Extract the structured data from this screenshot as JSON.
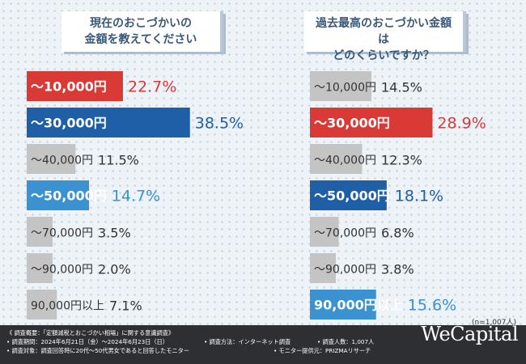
{
  "left_title": [
    "現在のおこづかいの",
    "金額を教えてください"
  ],
  "right_title": [
    "過去最高のおこづかい金額は",
    "どのくらいですか？"
  ],
  "chart_data": [
    {
      "type": "bar",
      "orientation": "horizontal",
      "title": "現在のおこづかいの金額を教えてください",
      "unit": "%",
      "categories": [
        "〜10,000円",
        "〜30,000円",
        "〜40,000円",
        "〜50,000円",
        "〜70,000円",
        "〜90,000円",
        "90,000円以上"
      ],
      "values": [
        22.7,
        38.5,
        11.5,
        14.7,
        3.5,
        2.0,
        7.1
      ],
      "value_labels": [
        "22.7%",
        "38.5%",
        "11.5%",
        "14.7%",
        "3.5%",
        "2.0%",
        "7.1%"
      ],
      "colors": [
        "#d93a36",
        "#1f5fa8",
        "#c4c4c4",
        "#3a92d1",
        "#c4c4c4",
        "#c4c4c4",
        "#c4c4c4"
      ],
      "label_colors": [
        "#d93a36",
        "#1f5fa8",
        "#333333",
        "#3a92d1",
        "#333333",
        "#333333",
        "#333333"
      ],
      "highlight": [
        true,
        true,
        false,
        true,
        false,
        false,
        false
      ],
      "xlim": [
        0,
        38.5
      ]
    },
    {
      "type": "bar",
      "orientation": "horizontal",
      "title": "過去最高のおこづかい金額はどのくらいですか？",
      "unit": "%",
      "categories": [
        "〜10,000円",
        "〜30,000円",
        "〜40,000円",
        "〜50,000円",
        "〜70,000円",
        "〜90,000円",
        "90,000円以上"
      ],
      "values": [
        14.5,
        28.9,
        12.3,
        18.1,
        6.8,
        3.8,
        15.6
      ],
      "value_labels": [
        "14.5%",
        "28.9%",
        "12.3%",
        "18.1%",
        "6.8%",
        "3.8%",
        "15.6%"
      ],
      "colors": [
        "#c4c4c4",
        "#d93a36",
        "#c4c4c4",
        "#1f5fa8",
        "#c4c4c4",
        "#c4c4c4",
        "#3a92d1"
      ],
      "label_colors": [
        "#333333",
        "#d93a36",
        "#333333",
        "#1f5fa8",
        "#333333",
        "#333333",
        "#3a92d1"
      ],
      "highlight": [
        false,
        true,
        false,
        true,
        false,
        false,
        true
      ],
      "xlim": [
        0,
        38.5
      ]
    }
  ],
  "n_note": "(n=1,007人)",
  "footer": {
    "overview": "《 調査概要：「定額減税とおこづかい相場」に関する意識調査》",
    "period": "• 調査期間：2024年6月21日（金）〜2024年6月23日（日）",
    "method": "• 調査方法：インターネット調査",
    "count": "• 調査人数：1,007人",
    "target": "• 調査対象：調査回答時に20代〜50代男女であると回答したモニター",
    "provider": "• モニター提供元：PRIZMAリサーチ"
  },
  "logo": "WeCapital"
}
